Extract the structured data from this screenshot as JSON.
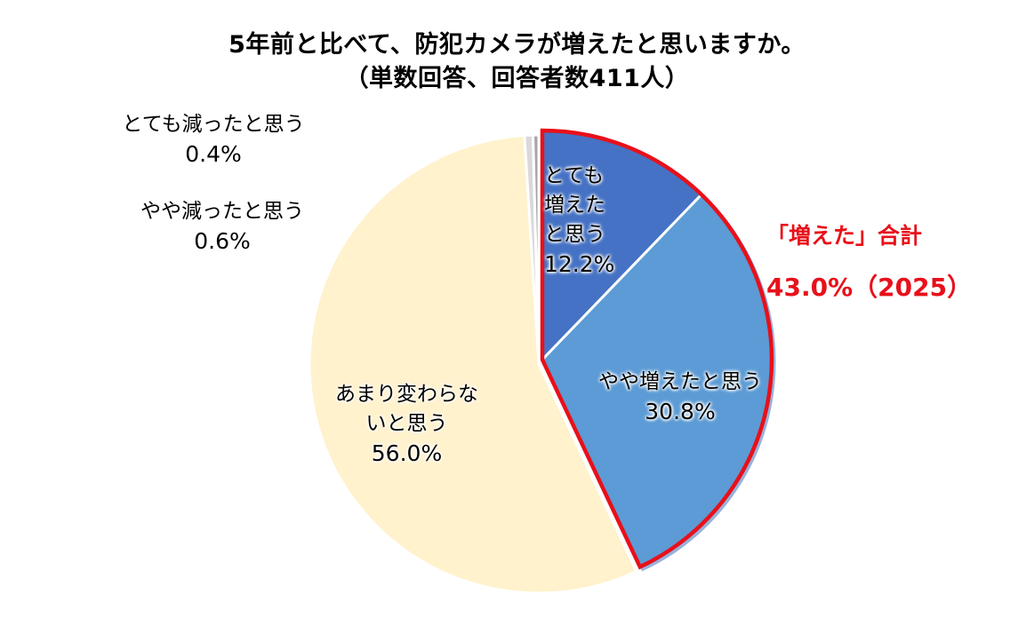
{
  "title": {
    "line1": "5年前と比べて、防犯カメラが増えたと思いますか。",
    "line2": "（単数回答、回答者数411人）"
  },
  "labels": {
    "much_increase": {
      "line1": "とても",
      "line2": "増えた",
      "line3": "と思う",
      "pct": "12.2%"
    },
    "some_increase": {
      "line1": "やや増えたと思う",
      "pct": "30.8%"
    },
    "no_change": {
      "line1": "あまり変わらな",
      "line2": "いと思う",
      "pct": "56.0%"
    },
    "some_decrease": {
      "line1": "やや減ったと思う",
      "pct": "0.6%"
    },
    "much_decrease": {
      "line1": "とても減ったと思う",
      "pct": "0.4%"
    }
  },
  "total_callout": {
    "line1": "「増えた」合計",
    "line2": "43.0%（2025）",
    "color": "#e8101a"
  },
  "colors": {
    "much_increase": "#4472c4",
    "some_increase": "#5b9bd5",
    "no_change": "#fff2cc",
    "some_decrease": "#d9d9d9",
    "much_decrease": "#a5a5a5",
    "highlight": "#e8101a"
  },
  "chart_data": {
    "type": "pie",
    "title": "5年前と比べて、防犯カメラが増えたと思いますか。（単数回答、回答者数411人）",
    "categories": [
      "とても増えたと思う",
      "やや増えたと思う",
      "あまり変わらないと思う",
      "やや減ったと思う",
      "とても減ったと思う"
    ],
    "values": [
      12.2,
      30.8,
      56.0,
      0.6,
      0.4
    ],
    "unit": "%",
    "start_angle": "12 o'clock, clockwise",
    "annotations": [
      {
        "text": "「増えた」合計 43.0%（2025）",
        "applies_to": [
          "とても増えたと思う",
          "やや増えたと思う"
        ],
        "style": "red outline around combined slices"
      }
    ],
    "n": 411,
    "legend": "none (labels on/near slices)"
  }
}
